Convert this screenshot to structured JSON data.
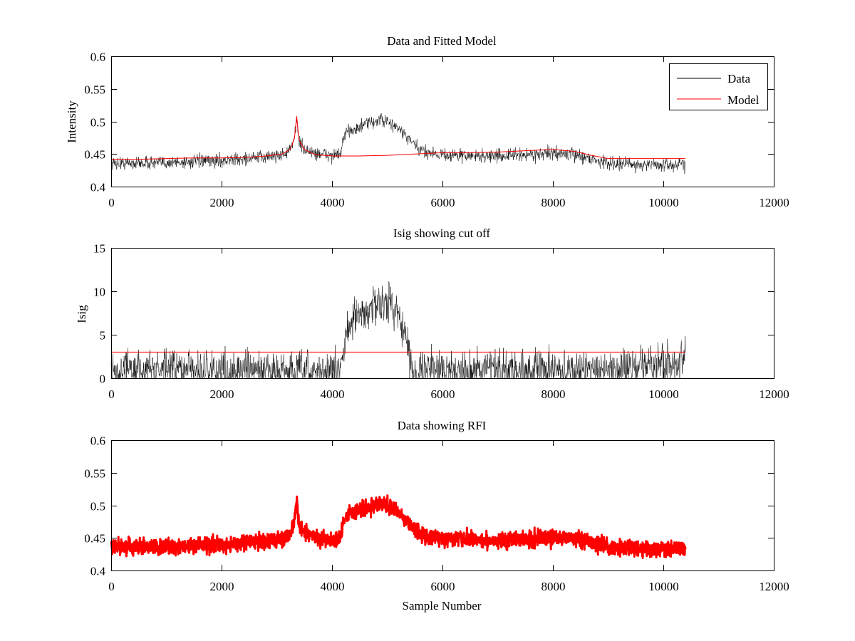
{
  "figure": {
    "background": "#ffffff"
  },
  "chart_data": [
    {
      "type": "line",
      "title": "Data and Fitted Model",
      "xlabel": "",
      "ylabel": "Intensity",
      "xlim": [
        0,
        12000
      ],
      "ylim": [
        0.4,
        0.6
      ],
      "xticks": [
        "0",
        "2000",
        "4000",
        "6000",
        "8000",
        "10000",
        "12000"
      ],
      "yticks": [
        "0.4",
        "0.45",
        "0.5",
        "0.55",
        "0.6"
      ],
      "legend": {
        "placement": "top-right",
        "entries": [
          "Data",
          "Model"
        ]
      },
      "series": [
        {
          "name": "Data",
          "color": "#000000",
          "style": "noisy-line",
          "noise": 0.005,
          "x": [
            0,
            500,
            1000,
            1500,
            2000,
            2500,
            2800,
            3100,
            3250,
            3320,
            3360,
            3400,
            3500,
            3700,
            4000,
            4150,
            4200,
            4300,
            4450,
            4600,
            4800,
            4900,
            5000,
            5200,
            5350,
            5500,
            5600,
            6000,
            6500,
            7000,
            7500,
            8000,
            8400,
            8700,
            9000,
            9500,
            10000,
            10400
          ],
          "y": [
            0.436,
            0.436,
            0.437,
            0.438,
            0.44,
            0.443,
            0.446,
            0.449,
            0.456,
            0.475,
            0.508,
            0.47,
            0.456,
            0.451,
            0.448,
            0.449,
            0.47,
            0.488,
            0.488,
            0.496,
            0.5,
            0.503,
            0.498,
            0.49,
            0.476,
            0.463,
            0.455,
            0.449,
            0.447,
            0.447,
            0.449,
            0.451,
            0.449,
            0.443,
            0.436,
            0.434,
            0.433,
            0.434
          ]
        },
        {
          "name": "Model",
          "color": "#ff0000",
          "style": "line",
          "x": [
            0,
            500,
            1000,
            1500,
            2000,
            2500,
            2800,
            3100,
            3250,
            3320,
            3360,
            3400,
            3500,
            3700,
            4000,
            4500,
            5000,
            5500,
            6000,
            6500,
            7000,
            7500,
            8000,
            8400,
            8700,
            9000,
            9500,
            10000,
            10400
          ],
          "y": [
            0.442,
            0.442,
            0.443,
            0.444,
            0.444,
            0.445,
            0.447,
            0.45,
            0.458,
            0.475,
            0.508,
            0.472,
            0.457,
            0.449,
            0.447,
            0.447,
            0.448,
            0.45,
            0.452,
            0.452,
            0.453,
            0.455,
            0.457,
            0.454,
            0.448,
            0.443,
            0.443,
            0.443,
            0.443
          ]
        }
      ]
    },
    {
      "type": "line",
      "title": "Isig showing cut off",
      "xlabel": "",
      "ylabel": "Isig",
      "xlim": [
        0,
        12000
      ],
      "ylim": [
        0,
        15
      ],
      "xticks": [
        "0",
        "2000",
        "4000",
        "6000",
        "8000",
        "10000",
        "12000"
      ],
      "yticks": [
        "0",
        "5",
        "10",
        "15"
      ],
      "series": [
        {
          "color": "#000000",
          "style": "noisy-line",
          "noise": 1.1,
          "x": [
            0,
            500,
            1000,
            1500,
            2000,
            2500,
            3000,
            3500,
            4000,
            4150,
            4200,
            4300,
            4450,
            4600,
            4800,
            4900,
            5000,
            5200,
            5350,
            5450,
            5600,
            6000,
            7000,
            8000,
            9000,
            9500,
            10000,
            10400
          ],
          "y": [
            1.0,
            1.0,
            1.0,
            1.0,
            1.0,
            0.9,
            0.8,
            0.7,
            0.8,
            0.7,
            3.0,
            6.5,
            7.0,
            7.5,
            8.5,
            9.0,
            8.5,
            8.0,
            4.0,
            1.0,
            1.0,
            1.0,
            1.0,
            0.9,
            1.0,
            1.3,
            1.7,
            1.8
          ]
        },
        {
          "color": "#ff0000",
          "style": "line",
          "x": [
            0,
            10400
          ],
          "y": [
            3,
            3
          ]
        }
      ]
    },
    {
      "type": "scatter",
      "title": "Data showing RFI",
      "xlabel": "Sample Number",
      "ylabel": "",
      "xlim": [
        0,
        12000
      ],
      "ylim": [
        0.4,
        0.6
      ],
      "xticks": [
        "0",
        "2000",
        "4000",
        "6000",
        "8000",
        "10000",
        "12000"
      ],
      "yticks": [
        "0.4",
        "0.45",
        "0.5",
        "0.55",
        "0.6"
      ],
      "series": [
        {
          "color": "#ff0000",
          "style": "noisy-band",
          "noise": 0.006,
          "x": [
            0,
            500,
            1000,
            1500,
            2000,
            2500,
            2800,
            3100,
            3250,
            3320,
            3360,
            3400,
            3500,
            3700,
            4000,
            4150,
            4200,
            4300,
            4450,
            4600,
            4800,
            4900,
            5000,
            5200,
            5350,
            5500,
            5600,
            6000,
            6500,
            7000,
            7500,
            8000,
            8400,
            8700,
            9000,
            9500,
            10000,
            10400
          ],
          "y": [
            0.436,
            0.436,
            0.437,
            0.438,
            0.44,
            0.443,
            0.446,
            0.449,
            0.456,
            0.475,
            0.51,
            0.47,
            0.456,
            0.451,
            0.448,
            0.449,
            0.47,
            0.49,
            0.49,
            0.498,
            0.5,
            0.505,
            0.498,
            0.49,
            0.476,
            0.463,
            0.455,
            0.449,
            0.447,
            0.447,
            0.449,
            0.451,
            0.449,
            0.443,
            0.436,
            0.434,
            0.433,
            0.434
          ]
        }
      ]
    }
  ]
}
